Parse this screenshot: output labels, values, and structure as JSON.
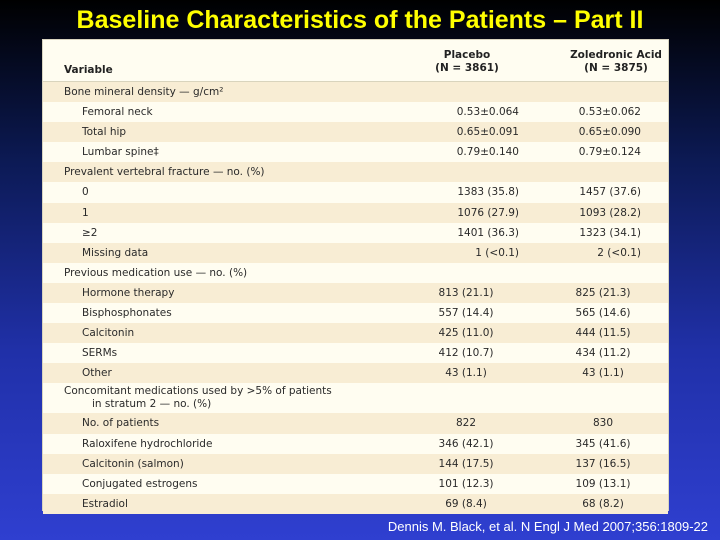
{
  "slide": {
    "title": "Baseline Characteristics of the Patients – Part II",
    "citation": "Dennis M. Black, et al. N Engl J Med 2007;356:1809-22"
  },
  "table": {
    "header": {
      "variable": "Variable",
      "col1_line1": "Placebo",
      "col1_line2": "(N = 3861)",
      "col2_line1": "Zoledronic Acid",
      "col2_line2": "(N = 3875)"
    },
    "rows": [
      {
        "type": "section",
        "label": "Bone mineral density — g/cm²",
        "v1": "",
        "v2": ""
      },
      {
        "type": "item",
        "label": "Femoral neck",
        "v1": "0.53±0.064",
        "v2": "0.53±0.062"
      },
      {
        "type": "item",
        "label": "Total hip",
        "v1": "0.65±0.091",
        "v2": "0.65±0.090"
      },
      {
        "type": "item",
        "label": "Lumbar spine‡",
        "v1": "0.79±0.140",
        "v2": "0.79±0.124"
      },
      {
        "type": "section",
        "label": "Prevalent vertebral fracture — no. (%)",
        "v1": "",
        "v2": ""
      },
      {
        "type": "item",
        "label": "0",
        "v1": "1383 (35.8)",
        "v2": "1457 (37.6)"
      },
      {
        "type": "item",
        "label": "1",
        "v1": "1076 (27.9)",
        "v2": "1093 (28.2)"
      },
      {
        "type": "item",
        "label": "≥2",
        "v1": "1401 (36.3)",
        "v2": "1323 (34.1)"
      },
      {
        "type": "item",
        "label": "Missing data",
        "v1": "1 (<0.1)",
        "v2": "2 (<0.1)"
      },
      {
        "type": "section",
        "label": "Previous medication use — no. (%)",
        "v1": "",
        "v2": ""
      },
      {
        "type": "item",
        "center": true,
        "label": "Hormone therapy",
        "v1": "813 (21.1)",
        "v2": "825 (21.3)"
      },
      {
        "type": "item",
        "center": true,
        "label": "Bisphosphonates",
        "v1": "557 (14.4)",
        "v2": "565 (14.6)"
      },
      {
        "type": "item",
        "center": true,
        "label": "Calcitonin",
        "v1": "425 (11.0)",
        "v2": "444 (11.5)"
      },
      {
        "type": "item",
        "center": true,
        "label": "SERMs",
        "v1": "412 (10.7)",
        "v2": "434 (11.2)"
      },
      {
        "type": "item",
        "center": true,
        "label": "Other",
        "v1": "43 (1.1)",
        "v2": "43 (1.1)"
      },
      {
        "type": "section",
        "tall": true,
        "label": "Concomitant medications used by >5% of patients",
        "label2": "in stratum 2 — no. (%)",
        "v1": "",
        "v2": ""
      },
      {
        "type": "item",
        "center": true,
        "label": "No. of patients",
        "v1": "822",
        "v2": "830"
      },
      {
        "type": "item",
        "center": true,
        "label": "Raloxifene hydrochloride",
        "v1": "346 (42.1)",
        "v2": "345 (41.6)"
      },
      {
        "type": "item",
        "center": true,
        "label": "Calcitonin (salmon)",
        "v1": "144 (17.5)",
        "v2": "137 (16.5)"
      },
      {
        "type": "item",
        "center": true,
        "label": "Conjugated estrogens",
        "v1": "101 (12.3)",
        "v2": "109 (13.1)"
      },
      {
        "type": "item",
        "center": true,
        "label": "Estradiol",
        "v1": "69 (8.4)",
        "v2": "68 (8.2)"
      }
    ]
  }
}
